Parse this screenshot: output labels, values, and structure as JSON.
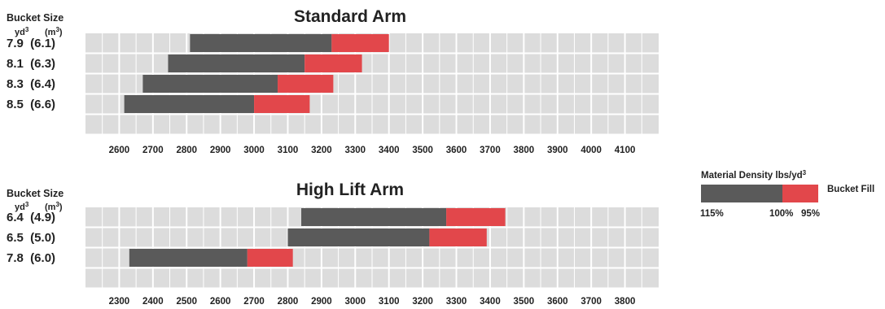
{
  "colors": {
    "grid_bg": "#dcdcdc",
    "grid_line": "#ffffff",
    "dark": "#5a5a5a",
    "red": "#e2474b",
    "text": "#222222"
  },
  "bucket_header": {
    "label": "Bucket Size",
    "unit_yd": "yd",
    "unit_m": "(m",
    "unit_close": ")",
    "sup": "3"
  },
  "legend": {
    "title": "Material Density lbs/yd",
    "title_sup": "3",
    "fill_label": "Bucket Fill",
    "pct_115": "115%",
    "pct_100": "100%",
    "pct_95": "95%"
  },
  "chart_data": [
    {
      "type": "bar",
      "title": "Standard Arm",
      "categories": [
        "7.9  (6.1)",
        "8.1  (6.3)",
        "8.3  (6.4)",
        "8.5  (6.6)"
      ],
      "xlim": [
        2500,
        4200
      ],
      "xticks": [
        2600,
        2700,
        2800,
        2900,
        3000,
        3100,
        3200,
        3300,
        3400,
        3500,
        3600,
        3700,
        3800,
        3900,
        4000,
        4100
      ],
      "series": [
        {
          "name": "115%",
          "values": [
            2810,
            2745,
            2670,
            2615
          ]
        },
        {
          "name": "100%",
          "values": [
            3230,
            3150,
            3070,
            3000
          ]
        },
        {
          "name": "95%",
          "values": [
            3400,
            3320,
            3235,
            3165
          ]
        }
      ]
    },
    {
      "type": "bar",
      "title": "High Lift Arm",
      "categories": [
        "6.4  (4.9)",
        "6.5  (5.0)",
        "7.8  (6.0)"
      ],
      "xlim": [
        2200,
        3900
      ],
      "xticks": [
        2300,
        2400,
        2500,
        2600,
        2700,
        2800,
        2900,
        3000,
        3100,
        3200,
        3300,
        3400,
        3500,
        3600,
        3700,
        3800
      ],
      "series": [
        {
          "name": "115%",
          "values": [
            2840,
            2800,
            2330
          ]
        },
        {
          "name": "100%",
          "values": [
            3270,
            3220,
            2680
          ]
        },
        {
          "name": "95%",
          "values": [
            3445,
            3390,
            2815
          ]
        }
      ]
    }
  ]
}
